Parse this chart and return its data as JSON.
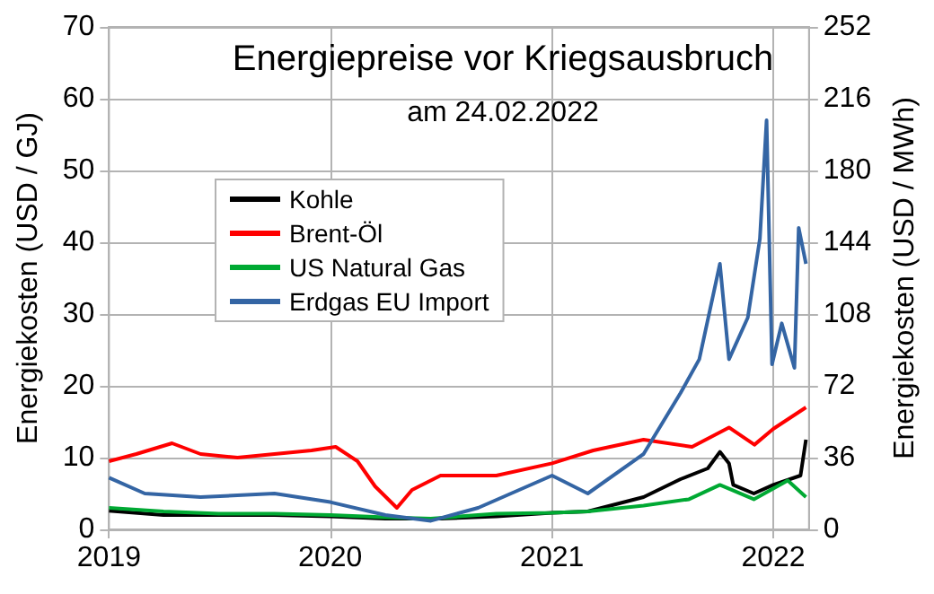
{
  "chart_data": {
    "type": "line",
    "title": "Energiepreise vor Kriegsausbruch",
    "subtitle": "am 24.02.2022",
    "ylabel": "Energiekosten (USD / GJ)",
    "y2label": "Energiekosten (USD / MWh)",
    "xlim": [
      "2019-01-01",
      "2022-03-01"
    ],
    "xticks": [
      {
        "value": "2019-01-01",
        "label": "2019"
      },
      {
        "value": "2020-01-01",
        "label": "2020"
      },
      {
        "value": "2021-01-01",
        "label": "2021"
      },
      {
        "value": "2022-01-01",
        "label": "2022"
      }
    ],
    "ylim": [
      0,
      70
    ],
    "yticks": [
      0,
      10,
      20,
      30,
      40,
      50,
      60,
      70
    ],
    "y2lim": [
      0,
      252
    ],
    "y2ticks": [
      0,
      36,
      72,
      108,
      144,
      180,
      216,
      252
    ],
    "grid": true,
    "legend": "top left",
    "line_style": "solid",
    "marker": "none",
    "series": [
      {
        "name": "Kohle",
        "color": "#000000",
        "x": [
          "2019-01-01",
          "2019-04-01",
          "2019-07-01",
          "2019-10-01",
          "2020-01-01",
          "2020-04-01",
          "2020-07-01",
          "2020-10-01",
          "2021-01-01",
          "2021-03-01",
          "2021-06-01",
          "2021-08-01",
          "2021-09-15",
          "2021-10-05",
          "2021-10-20",
          "2021-10-27",
          "2021-11-30",
          "2022-01-01",
          "2022-02-15",
          "2022-02-24"
        ],
        "values": [
          2.6,
          2,
          2,
          2,
          1.8,
          1.5,
          1.5,
          1.8,
          2.3,
          2.5,
          4.5,
          7,
          8.5,
          10.8,
          9.2,
          6.2,
          5,
          6.2,
          7.5,
          12.5
        ]
      },
      {
        "name": "Brent-Öl",
        "color": "#ff0000",
        "x": [
          "2019-01-01",
          "2019-02-15",
          "2019-04-15",
          "2019-06-01",
          "2019-08-01",
          "2019-10-01",
          "2019-12-01",
          "2020-01-10",
          "2020-02-15",
          "2020-03-15",
          "2020-04-20",
          "2020-05-15",
          "2020-07-01",
          "2020-10-01",
          "2021-01-01",
          "2021-03-10",
          "2021-06-01",
          "2021-08-20",
          "2021-10-20",
          "2021-12-01",
          "2022-01-01",
          "2022-02-24"
        ],
        "values": [
          9.5,
          10.5,
          12,
          10.5,
          10,
          10.5,
          11,
          11.5,
          9.5,
          6,
          3,
          5.5,
          7.5,
          7.5,
          9.2,
          11,
          12.5,
          11.5,
          14.2,
          11.8,
          14,
          17
        ]
      },
      {
        "name": "US Natural Gas",
        "color": "#00a933",
        "x": [
          "2019-01-01",
          "2019-04-01",
          "2019-07-01",
          "2019-10-01",
          "2020-01-01",
          "2020-04-01",
          "2020-06-15",
          "2020-10-01",
          "2021-01-01",
          "2021-03-01",
          "2021-06-01",
          "2021-08-15",
          "2021-10-05",
          "2021-11-30",
          "2022-01-25",
          "2022-02-24"
        ],
        "values": [
          3,
          2.5,
          2.2,
          2.2,
          2,
          1.7,
          1.5,
          2.2,
          2.3,
          2.5,
          3.3,
          4.2,
          6.2,
          4.2,
          6.8,
          4.5
        ]
      },
      {
        "name": "Erdgas EU Import",
        "color": "#3465a4",
        "x": [
          "2019-01-01",
          "2019-03-01",
          "2019-06-01",
          "2019-10-01",
          "2020-01-01",
          "2020-04-01",
          "2020-06-15",
          "2020-09-01",
          "2021-01-01",
          "2021-03-01",
          "2021-06-01",
          "2021-08-01",
          "2021-09-01",
          "2021-10-05",
          "2021-10-20",
          "2021-11-20",
          "2021-12-10",
          "2021-12-21",
          "2021-12-30",
          "2022-01-15",
          "2022-02-05",
          "2022-02-12",
          "2022-02-24"
        ],
        "values": [
          7.2,
          5,
          4.5,
          5,
          3.8,
          2,
          1.2,
          3,
          7.5,
          5,
          10.5,
          19,
          23.7,
          37,
          23.7,
          29.5,
          40.5,
          57,
          23,
          28.7,
          22.5,
          42,
          37
        ]
      }
    ]
  }
}
